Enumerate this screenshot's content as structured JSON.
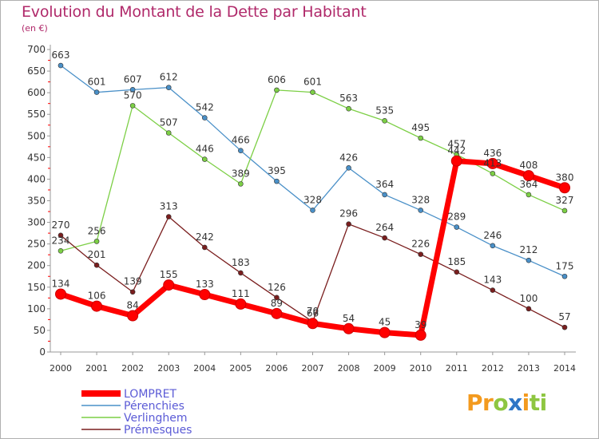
{
  "chart_data": {
    "type": "line",
    "title": "Evolution du Montant de la Dette par Habitant",
    "subtitle": "(en €)",
    "x": [
      "2000",
      "2001",
      "2002",
      "2003",
      "2004",
      "2005",
      "2006",
      "2007",
      "2008",
      "2009",
      "2010",
      "2011",
      "2012",
      "2013",
      "2014"
    ],
    "ylim": [
      0,
      700
    ],
    "yticks": [
      0,
      50,
      100,
      150,
      200,
      250,
      300,
      350,
      400,
      450,
      500,
      550,
      600,
      650,
      700
    ],
    "grid": false,
    "legend_position": "bottom-left",
    "series": [
      {
        "name": "LOMPRET",
        "color": "#ff0000",
        "values": [
          134,
          106,
          84,
          155,
          133,
          111,
          89,
          66,
          54,
          45,
          39,
          442,
          436,
          408,
          380
        ]
      },
      {
        "name": "Pérenchies",
        "color": "#4a90c8",
        "values": [
          663,
          601,
          607,
          612,
          542,
          466,
          395,
          328,
          426,
          364,
          328,
          289,
          246,
          212,
          175
        ]
      },
      {
        "name": "Verlinghem",
        "color": "#7ccf45",
        "values": [
          234,
          256,
          570,
          507,
          446,
          389,
          606,
          601,
          563,
          535,
          495,
          457,
          413,
          364,
          327
        ]
      },
      {
        "name": "Prémesques",
        "color": "#7a1e1e",
        "values": [
          270,
          201,
          139,
          313,
          242,
          183,
          126,
          70,
          296,
          264,
          226,
          185,
          143,
          100,
          57
        ]
      }
    ],
    "data_labels": [
      [
        "134",
        "106",
        "84",
        "155",
        "133",
        "111",
        "89",
        "66",
        "54",
        "45",
        "39",
        "442",
        "436",
        "408",
        "380"
      ],
      [
        "663",
        "601",
        "607",
        "612",
        "542",
        "466",
        "395",
        "328",
        "426",
        "364",
        "328",
        "289",
        "246",
        "212",
        "175"
      ],
      [
        "234",
        "256",
        "570",
        "507",
        "446",
        "389",
        "606",
        "601",
        "563",
        "535",
        "495",
        "457",
        "413",
        "364",
        "327"
      ],
      [
        "270",
        "201",
        "139",
        "313",
        "242",
        "183",
        "126",
        "70",
        "296",
        "264",
        "226",
        "185",
        "143",
        "100",
        "57"
      ]
    ]
  },
  "brand": {
    "logo_parts": [
      "Pr",
      "o",
      "x",
      "i",
      "ti"
    ],
    "colors": {
      "orange": "#f39a1e",
      "blue": "#2f76c6",
      "green": "#8ec641"
    }
  }
}
